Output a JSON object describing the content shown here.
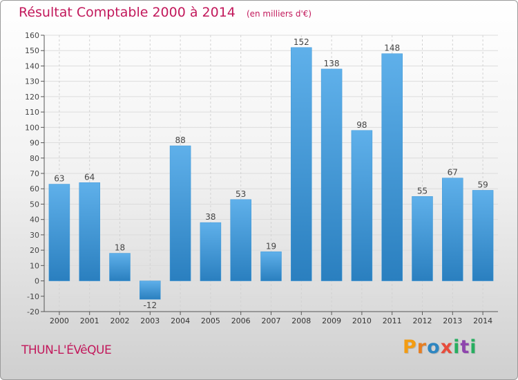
{
  "header": {
    "title": "Résultat Comptable 2000 à 2014",
    "subtitle": "(en milliers d'€)"
  },
  "footer": {
    "town": "THUN-L'ÉVêQUE",
    "brand": "Proxiti",
    "brand_letters": [
      "P",
      "r",
      "o",
      "x",
      "i",
      "t",
      "i"
    ],
    "brand_colors": [
      "#f39c12",
      "#e67e22",
      "#2e86c1",
      "#e74c3c",
      "#27ae60",
      "#8e44ad",
      "#27ae60"
    ]
  },
  "chart_data": {
    "type": "bar",
    "title": "Résultat Comptable 2000 à 2014",
    "subtitle": "(en milliers d'€)",
    "xlabel": "",
    "ylabel": "",
    "categories": [
      "2000",
      "2001",
      "2002",
      "2003",
      "2004",
      "2005",
      "2006",
      "2007",
      "2008",
      "2009",
      "2010",
      "2011",
      "2012",
      "2013",
      "2014"
    ],
    "values": [
      63,
      64,
      18,
      -12,
      88,
      38,
      53,
      19,
      152,
      138,
      98,
      148,
      55,
      67,
      59
    ],
    "ylim": [
      -20,
      160
    ],
    "yticks": [
      -20,
      -10,
      0,
      10,
      20,
      30,
      40,
      50,
      60,
      70,
      80,
      90,
      100,
      110,
      120,
      130,
      140,
      150,
      160
    ],
    "grid": true,
    "bar_color": "#3a96d8",
    "bar_color_light": "#5fb0ea",
    "bar_color_dark": "#2a7fbf"
  }
}
